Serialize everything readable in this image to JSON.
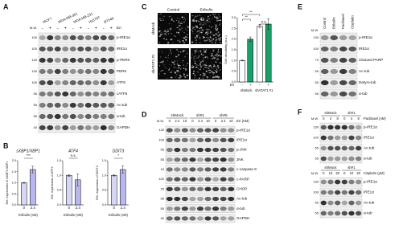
{
  "panels": {
    "A": {
      "label": "A",
      "mw_header": "M.W.",
      "treatment": "Eri",
      "signs": [
        "-",
        "+"
      ],
      "cell_lines": [
        "MCF7",
        "MDA-MB-361",
        "MDA-MB-231",
        "Hs578T",
        "BT549"
      ],
      "rows": [
        {
          "name": "p-IRE1α",
          "mw": "100"
        },
        {
          "name": "IRE1α",
          "mw": "100"
        },
        {
          "name": "p-PERK",
          "mw": "130"
        },
        {
          "name": "PERK",
          "mw": "130"
        },
        {
          "name": "ATF6",
          "mw": "100"
        },
        {
          "name": "cATF6",
          "mw": "55"
        },
        {
          "name": "Ac-tub",
          "mw": "55"
        },
        {
          "name": "α-tub",
          "mw": "55"
        },
        {
          "name": "GAPDH",
          "mw": "40"
        }
      ]
    },
    "B": {
      "label": "B"
    },
    "C": {
      "label": "C",
      "columns": [
        "Control",
        "Eribulin"
      ],
      "rows": [
        "shMock",
        "shATAT1 #1"
      ],
      "stain": "α-tubulin"
    },
    "D": {
      "label": "D",
      "mw_header": "M.W.",
      "treatment": "Eri (nM)",
      "groups": [
        "shMock",
        "sh#1",
        "sh#5"
      ],
      "doses": [
        "0",
        "2.4",
        "10"
      ],
      "rows": [
        {
          "name": "p-IRE1α",
          "mw": "130"
        },
        {
          "name": "IRE1α",
          "mw": "100"
        },
        {
          "name": "p-JNK",
          "mw": "55"
        },
        {
          "name": "JNK",
          "mw": "55"
        },
        {
          "name": "c-caspase 8",
          "mw": "15"
        },
        {
          "name": "c-PARP",
          "mw": "100"
        },
        {
          "name": "CHOP",
          "mw": "25"
        },
        {
          "name": "Ac-tub",
          "mw": "55"
        },
        {
          "name": "α-tub",
          "mw": "55"
        },
        {
          "name": "GAPDH",
          "mw": "40"
        }
      ]
    },
    "E": {
      "label": "E",
      "mw_header": "M.W.",
      "lanes": [
        "Control",
        "Eribulin",
        "Paclitaxel",
        "Cisplatin"
      ],
      "rows": [
        {
          "name": "p-IRE1α",
          "mw": "130"
        },
        {
          "name": "IRE1α",
          "mw": "100"
        },
        {
          "name": "Cleaved PARP",
          "mw": "70"
        },
        {
          "name": "Ac-tub",
          "mw": "55"
        },
        {
          "name": "Detyro-tub",
          "mw": "55"
        },
        {
          "name": "α-tub",
          "mw": "55"
        }
      ]
    },
    "F": {
      "label": "F",
      "mw_header": "M.W.",
      "blots": [
        {
          "groups": [
            "shMock",
            "sh#1"
          ],
          "treatment": "Paclitaxel (nM)",
          "doses": [
            "0",
            "4",
            "8"
          ],
          "rows": [
            {
              "name": "p-IRE1α",
              "mw": "130"
            },
            {
              "name": "IRE1α",
              "mw": "100"
            },
            {
              "name": "Ac-tub",
              "mw": "55"
            },
            {
              "name": "α-tub",
              "mw": "55"
            }
          ]
        },
        {
          "groups": [
            "shMock",
            "sh#1"
          ],
          "treatment": "Cisplatin (μM)",
          "doses": [
            "0",
            "10",
            "20"
          ],
          "rows": [
            {
              "name": "p-IRE1α",
              "mw": "130"
            },
            {
              "name": "IRE1α",
              "mw": "100"
            },
            {
              "name": "Ac-tub",
              "mw": "55"
            },
            {
              "name": "α-tub",
              "mw": "55"
            }
          ]
        }
      ]
    }
  },
  "chart_data": [
    {
      "type": "bar",
      "title": "sXBP1/XBP1",
      "y_label": "Rel. expression of sXBP1/XBP1",
      "x_label": "Eribulin (nM)",
      "categories": [
        "0",
        "2.4"
      ],
      "values": [
        1.0,
        1.6
      ],
      "errors": [
        0.02,
        0.15
      ],
      "colors": [
        "#d6d6f5",
        "#b8b8ef"
      ],
      "annotations": [
        "***"
      ],
      "ylim": [
        0,
        2
      ],
      "yticks": [
        {
          "value": 0,
          "label": "0.0"
        },
        {
          "value": 0.5,
          "label": "0.5"
        },
        {
          "value": 1,
          "label": "1.0"
        },
        {
          "value": 1.5,
          "label": "1.5"
        },
        {
          "value": 2,
          "label": "2.0"
        }
      ]
    },
    {
      "type": "bar",
      "title": "ATF4",
      "y_label": "Rel. expression of ATF4",
      "x_label": "Eribulin (nM)",
      "categories": [
        "0",
        "2.4"
      ],
      "values": [
        1.0,
        0.85
      ],
      "errors": [
        0.03,
        0.2
      ],
      "colors": [
        "#d6d6f5",
        "#b8b8ef"
      ],
      "annotations": [
        "n.s."
      ],
      "ylim": [
        0,
        1.5
      ],
      "yticks": [
        {
          "value": 0,
          "label": "0.0"
        },
        {
          "value": 0.5,
          "label": "0.5"
        },
        {
          "value": 1,
          "label": "1.0"
        },
        {
          "value": 1.5,
          "label": "1.5"
        }
      ]
    },
    {
      "type": "bar",
      "title": "DDIT3",
      "y_label": "Rel. expression of DDIT3",
      "x_label": "Eribulin (nM)",
      "categories": [
        "0",
        "2.4"
      ],
      "values": [
        1.0,
        1.2
      ],
      "errors": [
        0.02,
        0.12
      ],
      "colors": [
        "#d6d6f5",
        "#b8b8ef"
      ],
      "annotations": [
        "*"
      ],
      "ylim": [
        0,
        1.5
      ],
      "yticks": [
        {
          "value": 0,
          "label": "0.0"
        },
        {
          "value": 0.5,
          "label": "0.5"
        },
        {
          "value": 1,
          "label": "1.0"
        },
        {
          "value": 1.5,
          "label": "1.5"
        }
      ]
    },
    {
      "type": "bar",
      "y_label": "Cell circularity (a.u.)",
      "x_label": "Eri",
      "categories": [
        "-",
        "+",
        "-",
        "+"
      ],
      "groups": [
        "shMock",
        "shATAT1 #1"
      ],
      "values": [
        1.0,
        2.0,
        2.6,
        2.7
      ],
      "errors": [
        0.02,
        0.1,
        0.08,
        0.25
      ],
      "colors": [
        "#ffffff",
        "#1a9e6a",
        "#ffffff",
        "#1a9e6a"
      ],
      "annotations": [
        "**",
        "**",
        "n.s."
      ],
      "ylim": [
        0,
        3
      ],
      "yticks": [
        {
          "value": 0,
          "label": "0.0"
        },
        {
          "value": 0.5,
          "label": "0.5"
        },
        {
          "value": 1,
          "label": "1.0"
        },
        {
          "value": 1.5,
          "label": "1.5"
        },
        {
          "value": 2,
          "label": "2.0"
        },
        {
          "value": 2.5,
          "label": "2.5"
        },
        {
          "value": 3,
          "label": "3.0"
        }
      ]
    }
  ]
}
